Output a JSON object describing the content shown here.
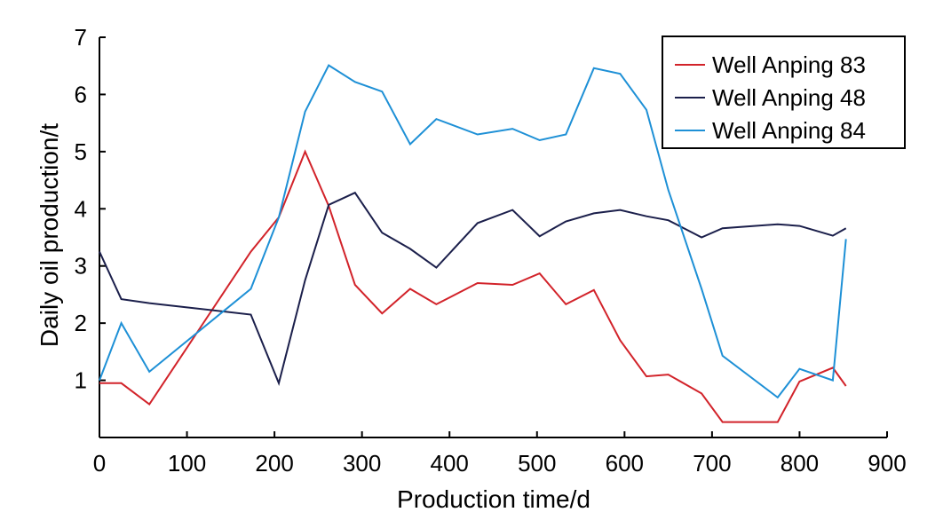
{
  "chart_data": {
    "type": "line",
    "xlabel": "Production time/d",
    "ylabel": "Daily oil production/t",
    "xlim": [
      0,
      900
    ],
    "ylim": [
      0,
      7
    ],
    "x_ticks": [
      0,
      100,
      200,
      300,
      400,
      500,
      600,
      700,
      800,
      900
    ],
    "y_ticks": [
      1,
      2,
      3,
      4,
      5,
      6,
      7
    ],
    "grid": false,
    "legend_position": "top-right",
    "series": [
      {
        "name": "Well Anping 83",
        "color": "#d2232a",
        "points": [
          [
            0,
            0.95
          ],
          [
            25,
            0.95
          ],
          [
            57,
            0.58
          ],
          [
            110,
            1.8
          ],
          [
            173,
            3.25
          ],
          [
            205,
            3.85
          ],
          [
            235,
            5.0
          ],
          [
            262,
            4.05
          ],
          [
            292,
            2.67
          ],
          [
            323,
            2.17
          ],
          [
            355,
            2.6
          ],
          [
            385,
            2.33
          ],
          [
            432,
            2.7
          ],
          [
            472,
            2.67
          ],
          [
            503,
            2.87
          ],
          [
            533,
            2.33
          ],
          [
            565,
            2.58
          ],
          [
            595,
            1.7
          ],
          [
            625,
            1.07
          ],
          [
            650,
            1.1
          ],
          [
            688,
            0.77
          ],
          [
            712,
            0.27
          ],
          [
            775,
            0.27
          ],
          [
            800,
            0.98
          ],
          [
            838,
            1.22
          ],
          [
            853,
            0.9
          ]
        ]
      },
      {
        "name": "Well Anping 48",
        "color": "#1b1f4b",
        "points": [
          [
            0,
            3.25
          ],
          [
            25,
            2.42
          ],
          [
            57,
            2.35
          ],
          [
            173,
            2.15
          ],
          [
            205,
            0.95
          ],
          [
            235,
            2.75
          ],
          [
            262,
            4.07
          ],
          [
            292,
            4.28
          ],
          [
            323,
            3.58
          ],
          [
            355,
            3.3
          ],
          [
            385,
            2.97
          ],
          [
            432,
            3.75
          ],
          [
            472,
            3.98
          ],
          [
            503,
            3.52
          ],
          [
            533,
            3.78
          ],
          [
            565,
            3.92
          ],
          [
            595,
            3.98
          ],
          [
            625,
            3.87
          ],
          [
            650,
            3.8
          ],
          [
            688,
            3.5
          ],
          [
            712,
            3.66
          ],
          [
            775,
            3.73
          ],
          [
            800,
            3.7
          ],
          [
            838,
            3.53
          ],
          [
            853,
            3.66
          ]
        ]
      },
      {
        "name": "Well Anping 84",
        "color": "#1e90d6",
        "points": [
          [
            0,
            1.0
          ],
          [
            25,
            2.0
          ],
          [
            57,
            1.15
          ],
          [
            173,
            2.6
          ],
          [
            205,
            3.85
          ],
          [
            235,
            5.7
          ],
          [
            262,
            6.51
          ],
          [
            292,
            6.22
          ],
          [
            323,
            6.05
          ],
          [
            355,
            5.13
          ],
          [
            385,
            5.57
          ],
          [
            432,
            5.3
          ],
          [
            472,
            5.4
          ],
          [
            503,
            5.2
          ],
          [
            533,
            5.3
          ],
          [
            565,
            6.46
          ],
          [
            595,
            6.36
          ],
          [
            625,
            5.73
          ],
          [
            650,
            4.33
          ],
          [
            688,
            2.6
          ],
          [
            712,
            1.43
          ],
          [
            775,
            0.7
          ],
          [
            800,
            1.2
          ],
          [
            838,
            1.0
          ],
          [
            853,
            3.47
          ]
        ]
      }
    ]
  }
}
